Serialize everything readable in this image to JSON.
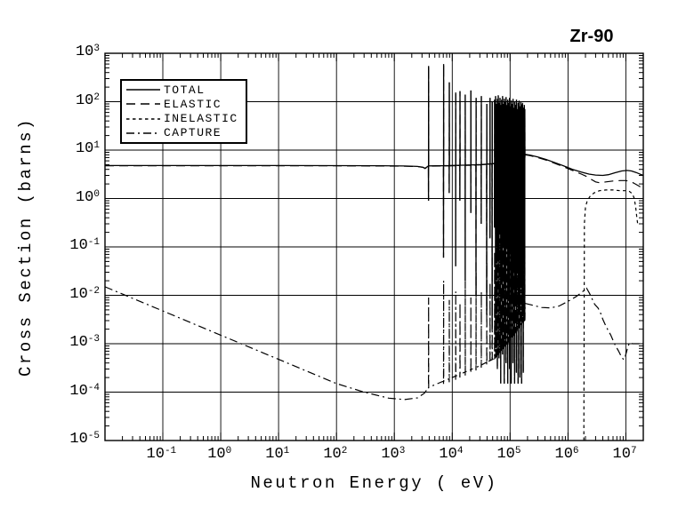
{
  "title": "Zr-90",
  "colors": {
    "foreground": "#000000",
    "background": "#ffffff"
  },
  "chart_data": {
    "type": "line",
    "title": "Zr-90",
    "xlabel": "Neutron Energy ( eV)",
    "ylabel": "Cross Section (barns)",
    "x_scale": "log",
    "y_scale": "log",
    "xlim": [
      0.01,
      20000000
    ],
    "ylim": [
      1e-05,
      1000
    ],
    "grid": true,
    "tick_base": "10",
    "x_tick_exponents": [
      -1,
      0,
      1,
      2,
      3,
      4,
      5,
      6,
      7
    ],
    "y_tick_exponents": [
      3,
      2,
      1,
      0,
      -1,
      -2,
      -3,
      -4,
      -5
    ],
    "legend": {
      "position": "top-left",
      "entries": [
        {
          "label": "TOTAL",
          "style": "solid"
        },
        {
          "label": "ELASTIC",
          "style": "long-dash"
        },
        {
          "label": "INELASTIC",
          "style": "short-dash"
        },
        {
          "label": "CAPTURE",
          "style": "dash-dot"
        }
      ]
    },
    "series": [
      {
        "name": "TOTAL",
        "style": "solid",
        "smooth_low": [
          [
            0.01,
            4.8
          ],
          [
            0.1,
            4.8
          ],
          [
            1,
            4.8
          ],
          [
            10,
            4.8
          ],
          [
            100,
            4.78
          ],
          [
            600,
            4.75
          ],
          [
            1500,
            4.7
          ],
          [
            2500,
            4.6
          ],
          [
            3100,
            4.45
          ],
          [
            3400,
            4.2
          ]
        ],
        "baseline": [
          [
            3600,
            4.7
          ],
          [
            10000,
            4.8
          ],
          [
            30000,
            5.0
          ],
          [
            80000,
            5.5
          ],
          [
            180000,
            7.0
          ]
        ],
        "resonances": [
          [
            3900,
            550,
            0.9
          ],
          [
            7100,
            600,
            0.06
          ],
          [
            8900,
            250,
            1.3
          ],
          [
            11500,
            155,
            0.04
          ],
          [
            13600,
            165,
            0.9
          ],
          [
            16800,
            140,
            0.02
          ],
          [
            21000,
            170,
            0.5
          ],
          [
            25800,
            120,
            0.01
          ],
          [
            31800,
            130,
            0.3
          ],
          [
            39500,
            90,
            0.004
          ],
          [
            45000,
            120,
            0.15
          ],
          [
            49000,
            100,
            0.002
          ],
          [
            54000,
            110,
            0.25
          ],
          [
            56200,
            130,
            0.0008
          ],
          [
            58300,
            90,
            0.1
          ],
          [
            60300,
            115,
            0.0003
          ],
          [
            62500,
            135,
            0.05
          ],
          [
            64600,
            95,
            0.0005
          ],
          [
            67000,
            120,
            0.18
          ],
          [
            69200,
            85,
            0.00015
          ],
          [
            71600,
            110,
            0.03
          ],
          [
            74100,
            130,
            0.0006
          ],
          [
            76700,
            90,
            0.12
          ],
          [
            79400,
            115,
            0.00015
          ],
          [
            82200,
            100,
            0.02
          ],
          [
            85100,
            125,
            0.0004
          ],
          [
            88100,
            85,
            0.09
          ],
          [
            91200,
            110,
            0.00015
          ],
          [
            94400,
            95,
            0.015
          ],
          [
            97700,
            120,
            0.0003
          ],
          [
            101200,
            80,
            0.07
          ],
          [
            104700,
            105,
            0.00015
          ],
          [
            108400,
            90,
            0.01
          ],
          [
            112200,
            115,
            0.0004
          ],
          [
            116100,
            75,
            0.05
          ],
          [
            120200,
            100,
            0.00015
          ],
          [
            124500,
            85,
            0.008
          ],
          [
            128800,
            110,
            0.00025
          ],
          [
            133400,
            70,
            0.03
          ],
          [
            138000,
            95,
            0.00015
          ],
          [
            142900,
            105,
            0.006
          ],
          [
            147900,
            80,
            0.0002
          ],
          [
            153100,
            100,
            0.02
          ],
          [
            158500,
            88,
            0.00015
          ],
          [
            164100,
            95,
            0.004
          ],
          [
            169800,
            75,
            0.00025
          ],
          [
            175800,
            85,
            0.05
          ],
          [
            179900,
            70,
            0.003
          ]
        ],
        "smooth_high": [
          [
            181000,
            8.2
          ],
          [
            220000,
            7.9
          ],
          [
            300000,
            7.2
          ],
          [
            420000,
            6.4
          ],
          [
            600000,
            5.5
          ],
          [
            850000,
            4.7
          ],
          [
            1200000,
            4.0
          ],
          [
            1700000,
            3.5
          ],
          [
            2300000,
            3.2
          ],
          [
            3000000,
            3.05
          ],
          [
            4000000,
            3.0
          ],
          [
            5000000,
            3.1
          ],
          [
            6500000,
            3.4
          ],
          [
            8500000,
            3.7
          ],
          [
            10500000,
            3.8
          ],
          [
            12500000,
            3.7
          ],
          [
            15000000,
            3.45
          ],
          [
            18000000,
            3.15
          ],
          [
            20000000,
            3.0
          ]
        ]
      },
      {
        "name": "ELASTIC",
        "style": "long-dash",
        "smooth_low": [
          [
            0.01,
            4.75
          ],
          [
            0.1,
            4.75
          ],
          [
            1,
            4.75
          ],
          [
            10,
            4.75
          ],
          [
            100,
            4.73
          ],
          [
            600,
            4.7
          ],
          [
            1500,
            4.65
          ],
          [
            2500,
            4.55
          ],
          [
            3100,
            4.4
          ],
          [
            3400,
            4.15
          ]
        ],
        "baseline": [
          [
            3600,
            4.65
          ],
          [
            10000,
            4.75
          ],
          [
            30000,
            4.95
          ],
          [
            80000,
            5.45
          ],
          [
            180000,
            6.9
          ]
        ],
        "resonances": "ref:TOTAL",
        "smooth_high": [
          [
            181000,
            8.0
          ],
          [
            220000,
            7.7
          ],
          [
            300000,
            7.0
          ],
          [
            420000,
            6.2
          ],
          [
            600000,
            5.3
          ],
          [
            850000,
            4.5
          ],
          [
            1200000,
            3.8
          ],
          [
            1700000,
            3.2
          ],
          [
            2100000,
            2.85
          ],
          [
            2500000,
            2.5
          ],
          [
            3000000,
            2.2
          ],
          [
            3600000,
            2.1
          ],
          [
            4500000,
            2.2
          ],
          [
            6000000,
            2.3
          ],
          [
            8000000,
            2.35
          ],
          [
            10000000,
            2.35
          ],
          [
            12000000,
            2.25
          ],
          [
            14000000,
            2.05
          ],
          [
            17000000,
            1.8
          ],
          [
            20000000,
            1.6
          ]
        ]
      },
      {
        "name": "INELASTIC",
        "style": "short-dash",
        "points": [
          [
            1880000,
            1e-05
          ],
          [
            1920000,
            0.3
          ],
          [
            2000000,
            0.65
          ],
          [
            2150000,
            0.9
          ],
          [
            2400000,
            1.1
          ],
          [
            2800000,
            1.3
          ],
          [
            3500000,
            1.45
          ],
          [
            4500000,
            1.5
          ],
          [
            6000000,
            1.5
          ],
          [
            8000000,
            1.45
          ],
          [
            10000000,
            1.45
          ],
          [
            11500000,
            1.4
          ],
          [
            13000000,
            1.25
          ],
          [
            14000000,
            1.0
          ],
          [
            14800000,
            0.65
          ],
          [
            15500000,
            0.4
          ],
          [
            16000000,
            0.3
          ]
        ]
      },
      {
        "name": "CAPTURE",
        "style": "dash-dot",
        "smooth_low": [
          [
            0.01,
            0.015
          ],
          [
            0.1,
            0.00475
          ],
          [
            1,
            0.0015
          ],
          [
            10,
            0.000475
          ],
          [
            100,
            0.00015
          ],
          [
            300,
            0.0001
          ],
          [
            800,
            7.5e-05
          ],
          [
            1500,
            7e-05
          ],
          [
            2500,
            7.6e-05
          ],
          [
            3300,
            9.5e-05
          ]
        ],
        "baseline": [
          [
            3600,
            0.00012
          ],
          [
            10000,
            0.0002
          ],
          [
            30000,
            0.00035
          ],
          [
            54000,
            0.0005
          ],
          [
            100000,
            0.0012
          ],
          [
            180000,
            0.0032
          ]
        ],
        "resonances": [
          [
            3900,
            0.009,
            0.00012
          ],
          [
            7100,
            0.02,
            0.00014
          ],
          [
            8900,
            0.008,
            0.00016
          ],
          [
            11500,
            0.012,
            0.00018
          ],
          [
            13600,
            0.007,
            0.0002
          ],
          [
            16800,
            0.02,
            0.00022
          ],
          [
            21000,
            0.009,
            0.00025
          ],
          [
            25800,
            0.03,
            0.00028
          ],
          [
            31800,
            0.012,
            0.00032
          ],
          [
            39500,
            0.05,
            0.00037
          ],
          [
            45000,
            0.018,
            0.00042
          ],
          [
            49000,
            0.06,
            0.00046
          ],
          [
            54000,
            0.08,
            0.0005
          ],
          [
            56200,
            0.03,
            0.00052
          ],
          [
            58300,
            0.1,
            0.00055
          ],
          [
            60300,
            0.04,
            0.00058
          ],
          [
            62500,
            0.12,
            0.0006
          ],
          [
            64600,
            0.05,
            0.00063
          ],
          [
            67000,
            0.15,
            0.00066
          ],
          [
            69200,
            0.06,
            0.0007
          ],
          [
            71600,
            0.17,
            0.00074
          ],
          [
            74100,
            0.07,
            0.00078
          ],
          [
            76700,
            0.2,
            0.00082
          ],
          [
            79400,
            0.08,
            0.00086
          ],
          [
            82200,
            0.22,
            0.0009
          ],
          [
            85100,
            0.09,
            0.00095
          ],
          [
            88100,
            0.25,
            0.001
          ],
          [
            91200,
            0.1,
            0.00105
          ],
          [
            94400,
            0.27,
            0.0011
          ],
          [
            97700,
            0.11,
            0.00115
          ],
          [
            101200,
            0.3,
            0.0012
          ],
          [
            104700,
            0.12,
            0.0013
          ],
          [
            108400,
            0.3,
            0.00135
          ],
          [
            112200,
            0.13,
            0.0014
          ],
          [
            116100,
            0.3,
            0.0015
          ],
          [
            120200,
            0.14,
            0.0016
          ],
          [
            124500,
            0.3,
            0.0017
          ],
          [
            128800,
            0.15,
            0.0018
          ],
          [
            133400,
            0.3,
            0.0019
          ],
          [
            138000,
            0.16,
            0.002
          ],
          [
            142900,
            0.3,
            0.0021
          ],
          [
            147900,
            0.17,
            0.0022
          ],
          [
            153100,
            0.3,
            0.0023
          ],
          [
            158500,
            0.18,
            0.0025
          ],
          [
            164100,
            0.3,
            0.0026
          ],
          [
            169800,
            0.19,
            0.0028
          ],
          [
            175800,
            0.3,
            0.0029
          ],
          [
            179900,
            0.2,
            0.003
          ]
        ],
        "smooth_high": [
          [
            182000,
            0.0068
          ],
          [
            250000,
            0.0062
          ],
          [
            350000,
            0.0056
          ],
          [
            500000,
            0.0055
          ],
          [
            700000,
            0.006
          ],
          [
            1000000,
            0.0075
          ],
          [
            1400000,
            0.0095
          ],
          [
            1800000,
            0.012
          ],
          [
            2100000,
            0.014
          ],
          [
            2350000,
            0.011
          ],
          [
            2600000,
            0.0085
          ],
          [
            2900000,
            0.0065
          ],
          [
            3300000,
            0.0055
          ],
          [
            3600000,
            0.0045
          ],
          [
            4000000,
            0.0032
          ],
          [
            4600000,
            0.0022
          ],
          [
            5500000,
            0.0015
          ],
          [
            6500000,
            0.00095
          ],
          [
            7500000,
            0.0007
          ],
          [
            8500000,
            0.00052
          ],
          [
            9200000,
            0.00047
          ],
          [
            9800000,
            0.00055
          ],
          [
            10500000,
            0.00075
          ],
          [
            11500000,
            0.00105
          ],
          [
            13000000,
            0.001
          ],
          [
            16000000,
            0.001
          ],
          [
            20000000,
            0.001
          ]
        ]
      }
    ]
  }
}
